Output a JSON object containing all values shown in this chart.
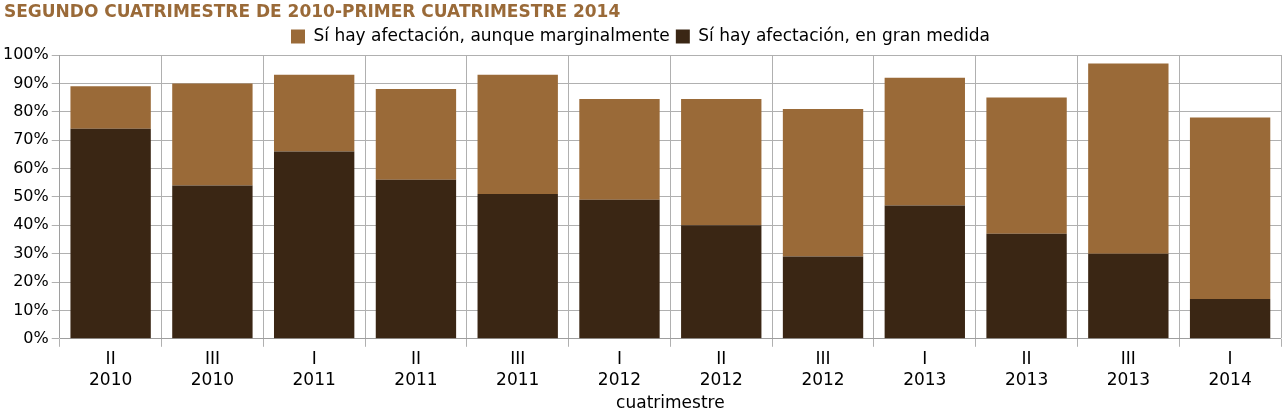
{
  "chart_data": {
    "type": "bar",
    "title": "SEGUNDO CUATRIMESTRE DE 2010-PRIMER CUATRIMESTRE 2014",
    "xlabel": "cuatrimestre",
    "categories": [
      "II\n2010",
      "III\n2010",
      "I\n2011",
      "II\n2011",
      "III\n2011",
      "I\n2012",
      "II\n2012",
      "III\n2012",
      "I\n2013",
      "II\n2013",
      "III\n2013",
      "I\n2014"
    ],
    "stacked": true,
    "series": [
      {
        "name": "Sí hay afectación, en gran medida",
        "color": "#3a2614",
        "values": [
          74,
          54,
          66,
          56,
          51,
          49,
          40,
          29,
          47,
          37,
          30,
          14
        ]
      },
      {
        "name": "Sí hay afectación, aunque marginalmente",
        "color": "#9a6a38",
        "values": [
          15,
          36,
          27,
          32,
          42,
          35.5,
          44.5,
          52,
          45,
          48,
          67,
          64
        ]
      }
    ],
    "ylim": [
      0,
      100
    ],
    "yticks": [
      {
        "value": 0,
        "label": "0%"
      },
      {
        "value": 10,
        "label": "10%"
      },
      {
        "value": 20,
        "label": "20%"
      },
      {
        "value": 30,
        "label": "30%"
      },
      {
        "value": 40,
        "label": "40%"
      },
      {
        "value": 50,
        "label": "50%"
      },
      {
        "value": 60,
        "label": "60%"
      },
      {
        "value": 70,
        "label": "70%"
      },
      {
        "value": 80,
        "label": "80%"
      },
      {
        "value": 90,
        "label": "90%"
      },
      {
        "value": 100,
        "label": "100%"
      }
    ],
    "grid": true,
    "legend": "top"
  }
}
